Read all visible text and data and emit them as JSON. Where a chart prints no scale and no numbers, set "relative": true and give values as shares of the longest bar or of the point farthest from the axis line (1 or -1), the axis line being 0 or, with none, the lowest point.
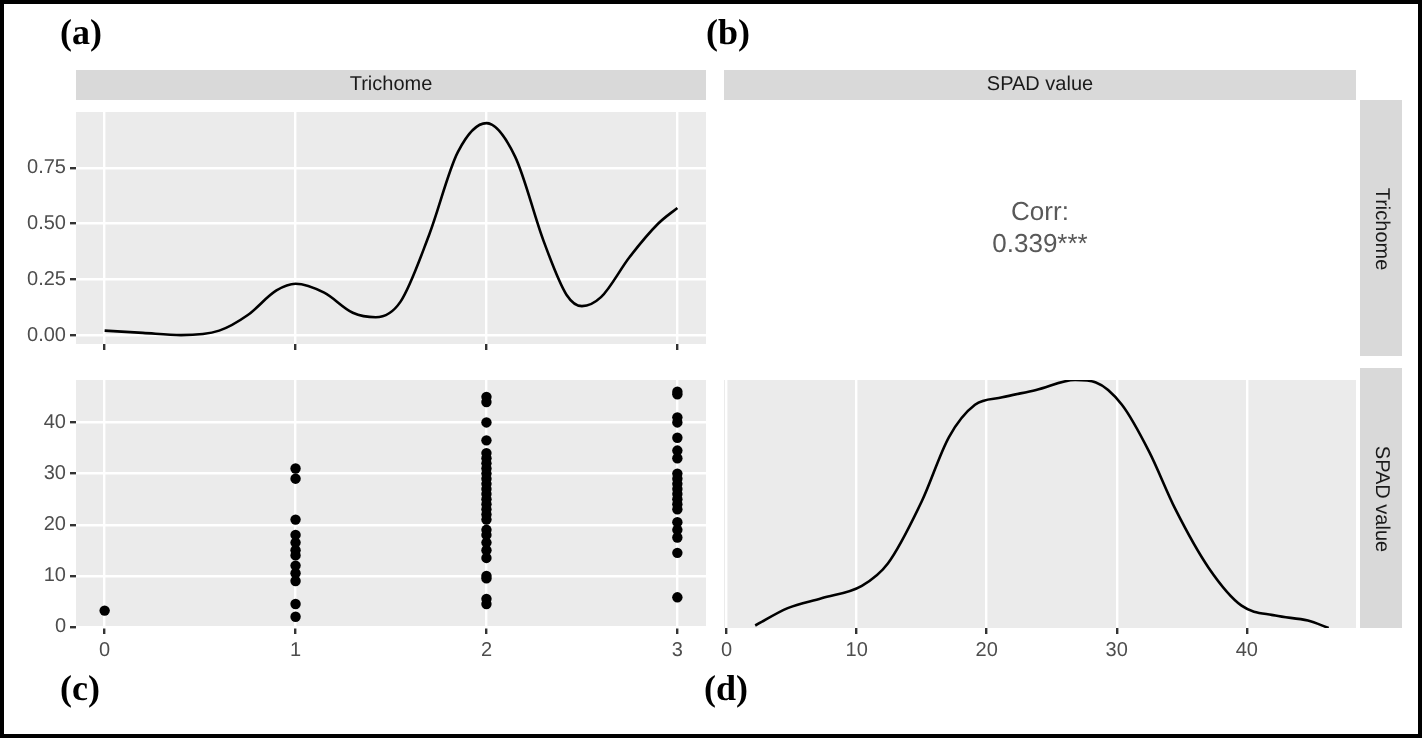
{
  "chart_data": [
    {
      "type": "line",
      "title": "Trichome",
      "annotations": [
        "(a)"
      ],
      "xlim": [
        -0.15,
        3.15
      ],
      "xticks": [
        0,
        1,
        2,
        3
      ],
      "ylim": [
        -0.04,
        1.0
      ],
      "yticks": [
        {
          "value": 0,
          "label": "0.00"
        },
        {
          "value": 0.25,
          "label": "0.25"
        },
        {
          "value": 0.5,
          "label": "0.50"
        },
        {
          "value": 0.75,
          "label": "0.75"
        }
      ],
      "tick_labels": "y",
      "grid": true,
      "marker": "none",
      "line_style": "solid",
      "series": [
        {
          "color": "#000000",
          "x": [
            0,
            0.2,
            0.4,
            0.6,
            0.75,
            0.9,
            1.0,
            1.15,
            1.3,
            1.42,
            1.55,
            1.7,
            1.85,
            2.0,
            2.15,
            2.3,
            2.42,
            2.5,
            2.6,
            2.75,
            2.9,
            3.0
          ],
          "values": [
            0.02,
            0.01,
            0.0,
            0.02,
            0.09,
            0.2,
            0.23,
            0.19,
            0.1,
            0.08,
            0.15,
            0.45,
            0.82,
            0.95,
            0.8,
            0.42,
            0.18,
            0.13,
            0.17,
            0.35,
            0.5,
            0.57
          ]
        }
      ]
    },
    {
      "type": "other",
      "title": "SPAD value",
      "y2label": "Trichome",
      "annotations": [
        "(b)",
        "Corr:",
        "0.339***"
      ]
    },
    {
      "type": "scatter",
      "annotations": [
        "(c)"
      ],
      "xlim": [
        -0.15,
        3.15
      ],
      "xticks": [
        0,
        1,
        2,
        3
      ],
      "ylim": [
        -0.2,
        48.3
      ],
      "yticks": [
        0,
        10,
        20,
        30,
        40
      ],
      "grid": true,
      "marker": "circle",
      "series": [
        {
          "color": "#000000",
          "x": [
            0,
            1,
            1,
            1,
            1,
            1,
            1,
            1,
            1,
            1,
            1,
            1,
            1,
            2,
            2,
            2,
            2,
            2,
            2,
            2,
            2,
            2,
            2,
            2,
            2,
            2,
            2,
            2,
            2,
            2,
            2,
            2,
            2,
            2,
            2,
            2,
            2,
            2,
            2,
            2,
            3,
            3,
            3,
            3,
            3,
            3,
            3,
            3,
            3,
            3,
            3,
            3,
            3,
            3,
            3,
            3,
            3,
            3,
            3,
            3
          ],
          "values": [
            3.2,
            2,
            4.5,
            9,
            10.5,
            12,
            14,
            15,
            16.5,
            18,
            21,
            29,
            31,
            4.5,
            5.5,
            9.5,
            10,
            13.5,
            15,
            16.5,
            18,
            19,
            21,
            22,
            23,
            24,
            25,
            26,
            27,
            28,
            29,
            30,
            31,
            32,
            33,
            34,
            36.5,
            40,
            44,
            45,
            5.8,
            14.5,
            17.5,
            19,
            20.5,
            23,
            24,
            25,
            26,
            27,
            28,
            29,
            30,
            33,
            34.5,
            37,
            40,
            41,
            45.5,
            46
          ]
        }
      ]
    },
    {
      "type": "line",
      "y2label": "SPAD value",
      "annotations": [
        "(d)"
      ],
      "relative": true,
      "xlim": [
        -0.2,
        48.4
      ],
      "xticks": [
        0,
        10,
        20,
        30,
        40
      ],
      "tick_labels": "x",
      "grid": true,
      "marker": "none",
      "line_style": "solid",
      "series": [
        {
          "color": "#000000",
          "x": [
            2.2,
            4.7,
            7.3,
            10.4,
            12.4,
            15,
            17.1,
            19.1,
            21.2,
            23.8,
            26.8,
            28.4,
            30.4,
            32.5,
            34.5,
            37.1,
            39.6,
            42.2,
            44.7,
            46.3
          ],
          "values": [
            0.01,
            0.08,
            0.12,
            0.17,
            0.26,
            0.51,
            0.77,
            0.9,
            0.93,
            0.96,
            1.0,
            0.99,
            0.9,
            0.71,
            0.48,
            0.24,
            0.09,
            0.05,
            0.03,
            0
          ]
        }
      ]
    }
  ]
}
